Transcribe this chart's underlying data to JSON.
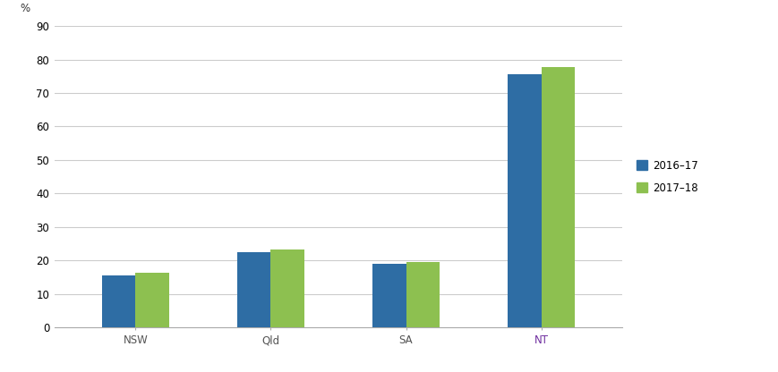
{
  "categories": [
    "NSW",
    "Qld",
    "SA",
    "NT"
  ],
  "values_2016_17": [
    15.5,
    22.5,
    19.0,
    75.5
  ],
  "values_2017_18": [
    16.3,
    23.2,
    19.5,
    77.8
  ],
  "color_2016_17": "#2E6DA4",
  "color_2017_18": "#8DC050",
  "ylabel": "%",
  "ylim": [
    0,
    90
  ],
  "yticks": [
    0,
    10,
    20,
    30,
    40,
    50,
    60,
    70,
    80,
    90
  ],
  "legend_labels": [
    "2016–17",
    "2017–18"
  ],
  "bar_width": 0.25,
  "nt_label_color": "#7030A0",
  "background_color": "#ffffff",
  "grid_color": "#cccccc",
  "tick_fontsize": 8.5,
  "legend_fontsize": 8.5
}
